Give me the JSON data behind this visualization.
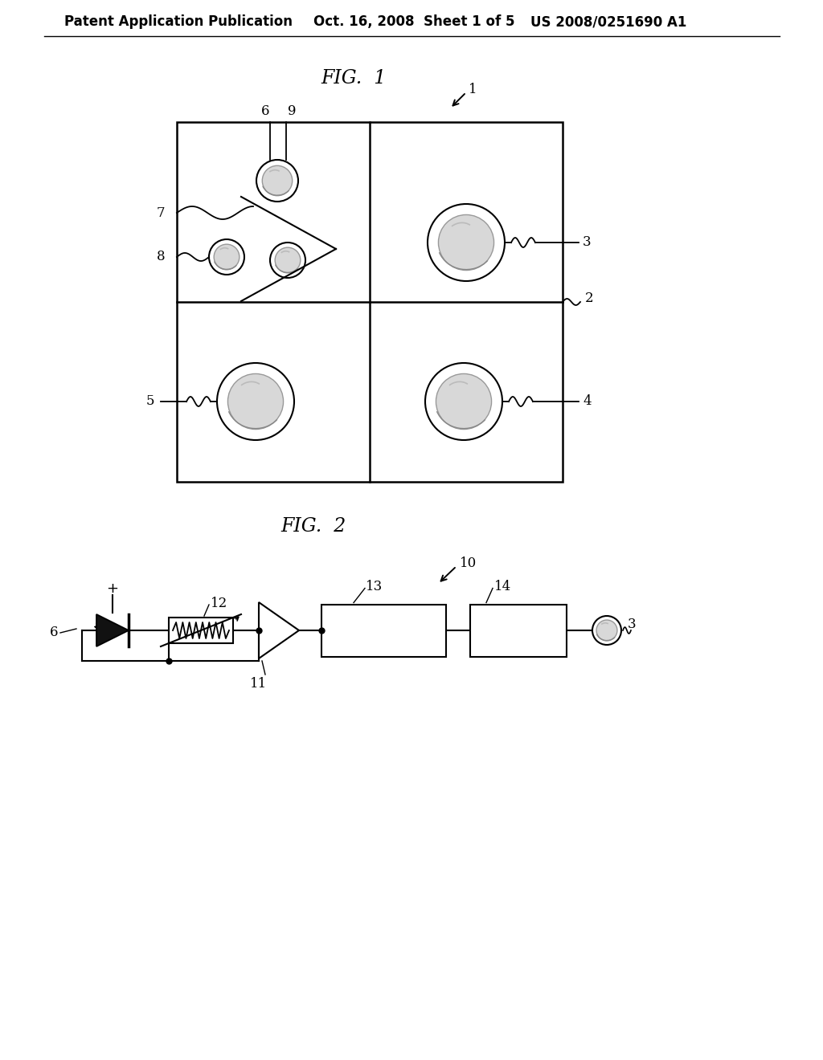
{
  "bg_color": "#ffffff",
  "text_color": "#000000",
  "line_color": "#000000",
  "header1": "Patent Application Publication",
  "header2": "Oct. 16, 2008  Sheet 1 of 5",
  "header3": "US 2008/0251690 A1"
}
